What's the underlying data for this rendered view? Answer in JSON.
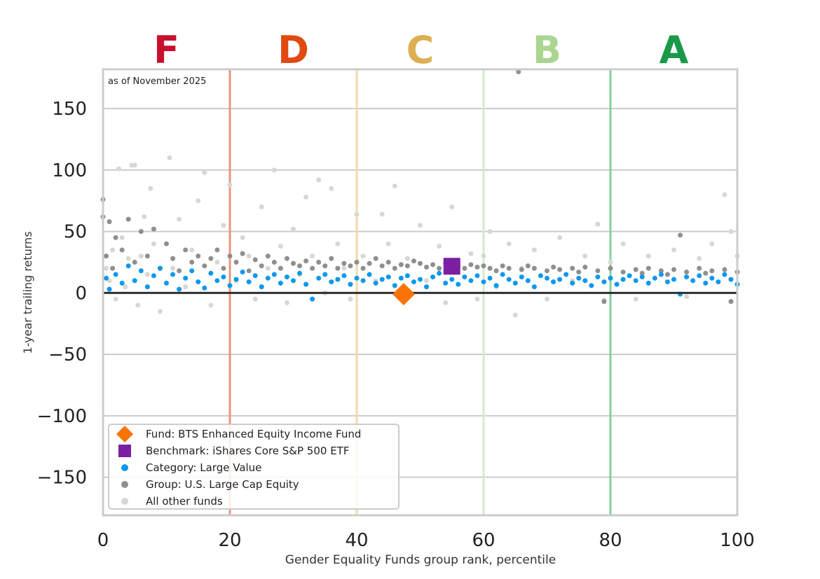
{
  "chart_data": {
    "type": "scatter",
    "annotation": "as of November 2025",
    "xlabel": "Gender Equality Funds group rank, percentile",
    "ylabel": "1-year trailing returns",
    "xlim": [
      0,
      100
    ],
    "ylim": [
      -181,
      182
    ],
    "xticks": [
      "0",
      "20",
      "40",
      "60",
      "80",
      "100"
    ],
    "yticks": [
      "150",
      "100",
      "50",
      "0",
      "−50",
      "−100",
      "−150"
    ],
    "grid": true,
    "legend_position": "bottom-left",
    "grades": [
      {
        "label": "F",
        "x": 10,
        "color": "#c8102e"
      },
      {
        "label": "D",
        "x": 30,
        "color": "#e04a12"
      },
      {
        "label": "C",
        "x": 50,
        "color": "#dcb052"
      },
      {
        "label": "B",
        "x": 70,
        "color": "#a9d690"
      },
      {
        "label": "A",
        "x": 90,
        "color": "#1a9a48"
      }
    ],
    "grade_boundaries": [
      {
        "x": 20,
        "color": "#eb957c"
      },
      {
        "x": 40,
        "color": "#f2dba6"
      },
      {
        "x": 60,
        "color": "#d5ebc8"
      },
      {
        "x": 80,
        "color": "#85cfa0"
      }
    ],
    "series": [
      {
        "name": "All other funds",
        "color": "#d5d9d2",
        "marker": "circle",
        "points": [
          [
            0.5,
            20
          ],
          [
            1,
            10
          ],
          [
            1.5,
            35
          ],
          [
            2,
            -5
          ],
          [
            2.5,
            101
          ],
          [
            3,
            45
          ],
          [
            3.5,
            5
          ],
          [
            4,
            28
          ],
          [
            4.5,
            104
          ],
          [
            5,
            104
          ],
          [
            5.5,
            -10
          ],
          [
            6,
            30
          ],
          [
            6.5,
            62
          ],
          [
            7,
            15
          ],
          [
            7.5,
            85
          ],
          [
            8,
            40
          ],
          [
            9,
            -15
          ],
          [
            10.5,
            110
          ],
          [
            11,
            20
          ],
          [
            12,
            60
          ],
          [
            13,
            5
          ],
          [
            14,
            35
          ],
          [
            15,
            75
          ],
          [
            16,
            98
          ],
          [
            17,
            -10
          ],
          [
            18,
            25
          ],
          [
            19,
            55
          ],
          [
            20,
            88
          ],
          [
            21,
            10
          ],
          [
            22,
            45
          ],
          [
            23,
            30
          ],
          [
            24,
            -5
          ],
          [
            25,
            70
          ],
          [
            26,
            20
          ],
          [
            27,
            100
          ],
          [
            28,
            38
          ],
          [
            29,
            -8
          ],
          [
            30,
            52
          ],
          [
            31,
            15
          ],
          [
            32,
            78
          ],
          [
            33,
            30
          ],
          [
            34,
            92
          ],
          [
            35,
            0
          ],
          [
            36,
            85
          ],
          [
            37,
            40
          ],
          [
            38,
            20
          ],
          [
            39,
            -5
          ],
          [
            40,
            64
          ],
          [
            41,
            30
          ],
          [
            43,
            10
          ],
          [
            44,
            64
          ],
          [
            45,
            40
          ],
          [
            46,
            87
          ],
          [
            47,
            -2
          ],
          [
            48,
            28
          ],
          [
            50,
            55
          ],
          [
            51,
            10
          ],
          [
            53,
            38
          ],
          [
            54,
            -8
          ],
          [
            55,
            70
          ],
          [
            56,
            25
          ],
          [
            58,
            32
          ],
          [
            59,
            -5
          ],
          [
            60,
            30
          ],
          [
            61,
            50
          ],
          [
            62,
            5
          ],
          [
            64,
            40
          ],
          [
            65,
            -18
          ],
          [
            66,
            20
          ],
          [
            68,
            35
          ],
          [
            70,
            -5
          ],
          [
            72,
            45
          ],
          [
            74,
            10
          ],
          [
            76,
            30
          ],
          [
            78,
            56
          ],
          [
            79,
            -6
          ],
          [
            80,
            25
          ],
          [
            82,
            40
          ],
          [
            84,
            -5
          ],
          [
            86,
            30
          ],
          [
            88,
            15
          ],
          [
            90,
            35
          ],
          [
            92,
            -3
          ],
          [
            94,
            28
          ],
          [
            96,
            40
          ],
          [
            98,
            80
          ],
          [
            99,
            50
          ],
          [
            100,
            30
          ]
        ]
      },
      {
        "name": "Group: U.S. Large Cap Equity",
        "color": "#8f8f8f",
        "marker": "circle",
        "points": [
          [
            0,
            76
          ],
          [
            0,
            62
          ],
          [
            0.5,
            30
          ],
          [
            1,
            58
          ],
          [
            1.5,
            20
          ],
          [
            2,
            45
          ],
          [
            3,
            35
          ],
          [
            4,
            60
          ],
          [
            5,
            25
          ],
          [
            6,
            50
          ],
          [
            7,
            30
          ],
          [
            8,
            52
          ],
          [
            9,
            20
          ],
          [
            10,
            40
          ],
          [
            11,
            28
          ],
          [
            12,
            18
          ],
          [
            13,
            35
          ],
          [
            14,
            25
          ],
          [
            15,
            30
          ],
          [
            16,
            22
          ],
          [
            17,
            28
          ],
          [
            18,
            35
          ],
          [
            19,
            20
          ],
          [
            20,
            30
          ],
          [
            21,
            25
          ],
          [
            22,
            32
          ],
          [
            23,
            18
          ],
          [
            24,
            27
          ],
          [
            25,
            22
          ],
          [
            26,
            30
          ],
          [
            27,
            25
          ],
          [
            28,
            20
          ],
          [
            29,
            28
          ],
          [
            30,
            24
          ],
          [
            31,
            22
          ],
          [
            32,
            26
          ],
          [
            33,
            20
          ],
          [
            34,
            25
          ],
          [
            35,
            22
          ],
          [
            36,
            28
          ],
          [
            37,
            20
          ],
          [
            38,
            24
          ],
          [
            39,
            22
          ],
          [
            40,
            25
          ],
          [
            41,
            20
          ],
          [
            42,
            24
          ],
          [
            43,
            28
          ],
          [
            44,
            22
          ],
          [
            45,
            25
          ],
          [
            46,
            20
          ],
          [
            47,
            23
          ],
          [
            48,
            22
          ],
          [
            49,
            26
          ],
          [
            50,
            24
          ],
          [
            51,
            21
          ],
          [
            52,
            23
          ],
          [
            53,
            20
          ],
          [
            54,
            24
          ],
          [
            56,
            22
          ],
          [
            57,
            20
          ],
          [
            58,
            23
          ],
          [
            59,
            21
          ],
          [
            60,
            22
          ],
          [
            61,
            20
          ],
          [
            62,
            18
          ],
          [
            63,
            22
          ],
          [
            64,
            20
          ],
          [
            65.5,
            180
          ],
          [
            66,
            19
          ],
          [
            67,
            22
          ],
          [
            68,
            20
          ],
          [
            70,
            18
          ],
          [
            71,
            21
          ],
          [
            72,
            19
          ],
          [
            74,
            20
          ],
          [
            75,
            17
          ],
          [
            76,
            21
          ],
          [
            78,
            18
          ],
          [
            79,
            -7
          ],
          [
            80,
            20
          ],
          [
            82,
            17
          ],
          [
            84,
            19
          ],
          [
            85,
            16
          ],
          [
            86,
            20
          ],
          [
            88,
            18
          ],
          [
            89,
            15
          ],
          [
            90,
            19
          ],
          [
            91,
            47
          ],
          [
            92,
            17
          ],
          [
            94,
            20
          ],
          [
            95,
            16
          ],
          [
            96,
            18
          ],
          [
            98,
            19
          ],
          [
            99,
            -7
          ],
          [
            100,
            17
          ]
        ]
      },
      {
        "name": "Category: Large Value",
        "color": "#0b98ee",
        "marker": "circle",
        "points": [
          [
            0.5,
            12
          ],
          [
            1,
            3
          ],
          [
            2,
            15
          ],
          [
            3,
            8
          ],
          [
            4,
            22
          ],
          [
            5,
            10
          ],
          [
            6,
            18
          ],
          [
            7,
            5
          ],
          [
            8,
            14
          ],
          [
            9,
            20
          ],
          [
            10,
            8
          ],
          [
            11,
            15
          ],
          [
            12,
            3
          ],
          [
            13,
            12
          ],
          [
            14,
            18
          ],
          [
            15,
            9
          ],
          [
            16,
            4
          ],
          [
            17,
            16
          ],
          [
            18,
            10
          ],
          [
            19,
            13
          ],
          [
            20,
            6
          ],
          [
            21,
            11
          ],
          [
            22,
            17
          ],
          [
            23,
            9
          ],
          [
            24,
            14
          ],
          [
            25,
            5
          ],
          [
            26,
            12
          ],
          [
            27,
            15
          ],
          [
            28,
            8
          ],
          [
            29,
            13
          ],
          [
            30,
            10
          ],
          [
            31,
            16
          ],
          [
            32,
            7
          ],
          [
            33,
            -5
          ],
          [
            34,
            12
          ],
          [
            35,
            15
          ],
          [
            36,
            9
          ],
          [
            37,
            11
          ],
          [
            38,
            14
          ],
          [
            39,
            7
          ],
          [
            40,
            12
          ],
          [
            41,
            10
          ],
          [
            42,
            15
          ],
          [
            43,
            8
          ],
          [
            44,
            11
          ],
          [
            45,
            13
          ],
          [
            46,
            6
          ],
          [
            47,
            12
          ],
          [
            48,
            14
          ],
          [
            49,
            9
          ],
          [
            50,
            11
          ],
          [
            51,
            5
          ],
          [
            52,
            13
          ],
          [
            53,
            16
          ],
          [
            54,
            8
          ],
          [
            55,
            11
          ],
          [
            56,
            7
          ],
          [
            57,
            13
          ],
          [
            58,
            10
          ],
          [
            59,
            14
          ],
          [
            60,
            9
          ],
          [
            61,
            12
          ],
          [
            62,
            6
          ],
          [
            63,
            15
          ],
          [
            64,
            11
          ],
          [
            65,
            8
          ],
          [
            66,
            13
          ],
          [
            67,
            10
          ],
          [
            68,
            5
          ],
          [
            69,
            14
          ],
          [
            70,
            12
          ],
          [
            71,
            9
          ],
          [
            72,
            11
          ],
          [
            73,
            15
          ],
          [
            74,
            8
          ],
          [
            75,
            12
          ],
          [
            76,
            10
          ],
          [
            77,
            6
          ],
          [
            78,
            13
          ],
          [
            79,
            9
          ],
          [
            80,
            12
          ],
          [
            81,
            7
          ],
          [
            82,
            11
          ],
          [
            83,
            14
          ],
          [
            84,
            10
          ],
          [
            85,
            13
          ],
          [
            86,
            8
          ],
          [
            87,
            12
          ],
          [
            88,
            15
          ],
          [
            89,
            9
          ],
          [
            90,
            11
          ],
          [
            91,
            -1
          ],
          [
            92,
            13
          ],
          [
            93,
            10
          ],
          [
            94,
            14
          ],
          [
            95,
            8
          ],
          [
            96,
            12
          ],
          [
            97,
            9
          ],
          [
            98,
            15
          ],
          [
            99,
            11
          ],
          [
            100,
            7
          ]
        ]
      },
      {
        "name": "Benchmark: iShares Core S&P 500 ETF",
        "color": "#7b1fa2",
        "marker": "square",
        "points": [
          [
            55,
            21.7
          ]
        ]
      },
      {
        "name": "Fund: BTS Enhanced Equity Income Fund",
        "color": "#f97306",
        "marker": "diamond",
        "points": [
          [
            47.4,
            -1
          ]
        ]
      }
    ],
    "legend_order": [
      4,
      3,
      2,
      1,
      0
    ]
  }
}
